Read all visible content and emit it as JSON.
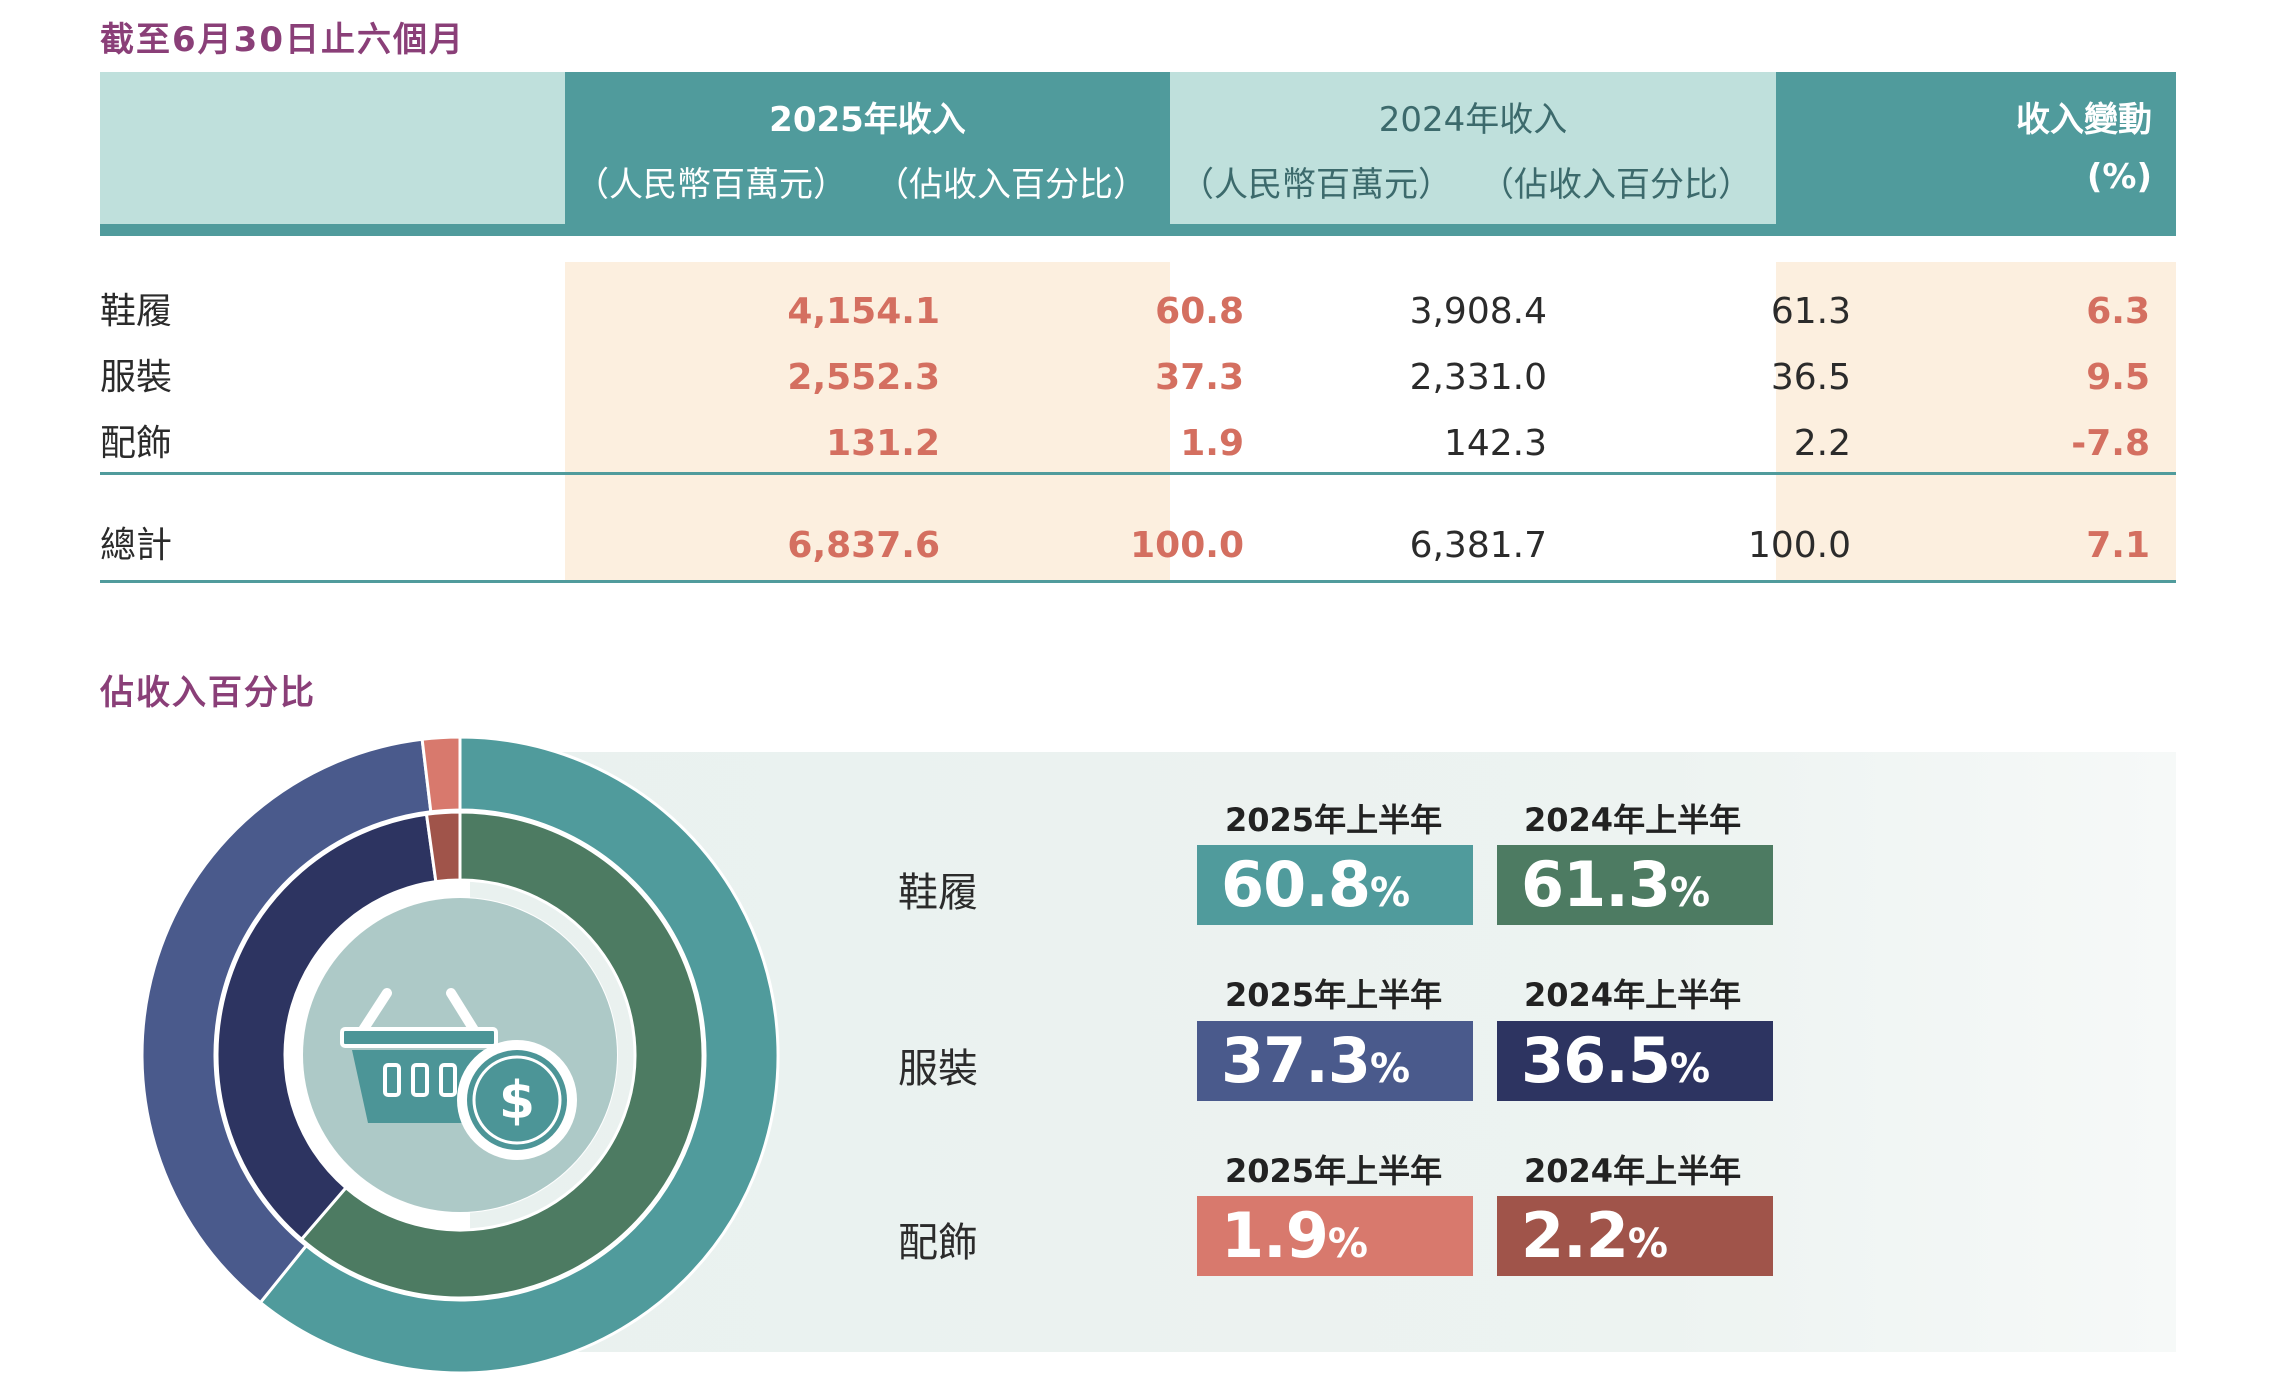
{
  "period_title": "截至6月30日止六個月",
  "table": {
    "header": {
      "year_2025": "2025年收入",
      "year_2024": "2024年收入",
      "unit_rmb": "（人民幣百萬元）",
      "unit_pct": "（佔收入百分比）",
      "change_label": "收入變動",
      "change_unit": "(%)"
    },
    "rows": [
      {
        "category": "鞋履",
        "rev_2025": "4,154.1",
        "pct_2025": "60.8",
        "rev_2024": "3,908.4",
        "pct_2024": "61.3",
        "change": "6.3"
      },
      {
        "category": "服裝",
        "rev_2025": "2,552.3",
        "pct_2025": "37.3",
        "rev_2024": "2,331.0",
        "pct_2024": "36.5",
        "change": "9.5"
      },
      {
        "category": "配飾",
        "rev_2025": "131.2",
        "pct_2025": "1.9",
        "rev_2024": "142.3",
        "pct_2024": "2.2",
        "change": "-7.8"
      }
    ],
    "total": {
      "category": "總計",
      "rev_2025": "6,837.6",
      "pct_2025": "100.0",
      "rev_2024": "6,381.7",
      "pct_2024": "100.0",
      "change": "7.1"
    }
  },
  "share_title": "佔收入百分比",
  "share_panel": {
    "year_label_2025": "2025年上半年",
    "year_label_2024": "2024年上半年",
    "pct_sign": "%",
    "items": [
      {
        "category": "鞋履",
        "v2025": "60.8",
        "v2024": "61.3",
        "color2025": "#509b9c",
        "color2024": "#4d7b62"
      },
      {
        "category": "服裝",
        "v2025": "37.3",
        "v2024": "36.5",
        "color2025": "#4a5a8c",
        "color2024": "#2d3461"
      },
      {
        "category": "配飾",
        "v2025": "1.9",
        "v2024": "2.2",
        "color2025": "#d8796d",
        "color2024": "#a0544a"
      }
    ]
  },
  "chart_data": {
    "type": "pie",
    "rings": [
      {
        "name": "2025年上半年",
        "categories": [
          "鞋履",
          "服裝",
          "配飾"
        ],
        "values": [
          60.8,
          37.3,
          1.9
        ],
        "colors": [
          "#509b9c",
          "#4a5a8c",
          "#d8796d"
        ]
      },
      {
        "name": "2024年上半年",
        "categories": [
          "鞋履",
          "服裝",
          "配飾"
        ],
        "values": [
          61.3,
          36.5,
          2.2
        ],
        "colors": [
          "#4d7b62",
          "#2d3461",
          "#a0544a"
        ]
      }
    ],
    "center_icons": [
      "shopping-basket-icon",
      "dollar-coin-icon"
    ]
  }
}
